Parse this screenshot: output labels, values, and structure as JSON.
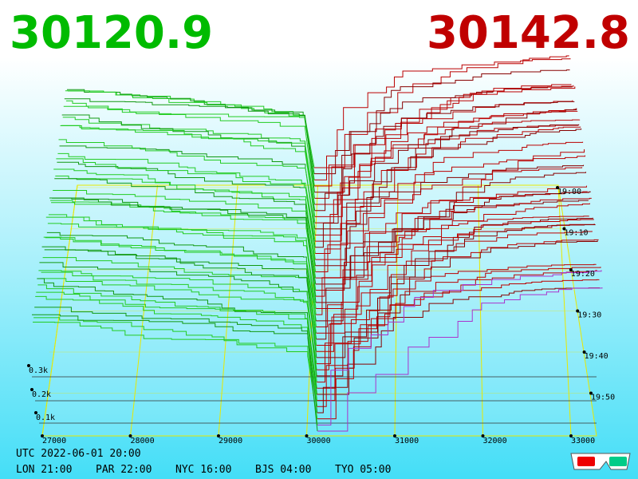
{
  "prices": {
    "bid": "30120.9",
    "ask": "30142.8"
  },
  "price_axis": {
    "ticks": [
      "27000",
      "28000",
      "29000",
      "30000",
      "31000",
      "32000",
      "33000"
    ]
  },
  "depth_axis": {
    "ticks": [
      "0.1k",
      "0.2k",
      "0.3k"
    ]
  },
  "time_axis": {
    "ticks": [
      "19:00",
      "19:10",
      "19:20",
      "19:30",
      "19:40",
      "19:50"
    ]
  },
  "footer": {
    "utc": "UTC 2022-06-01 20:00",
    "zones": [
      "LON 21:00",
      "PAR 22:00",
      "NYC 16:00",
      "BJS 04:00",
      "TYO 05:00"
    ]
  }
}
